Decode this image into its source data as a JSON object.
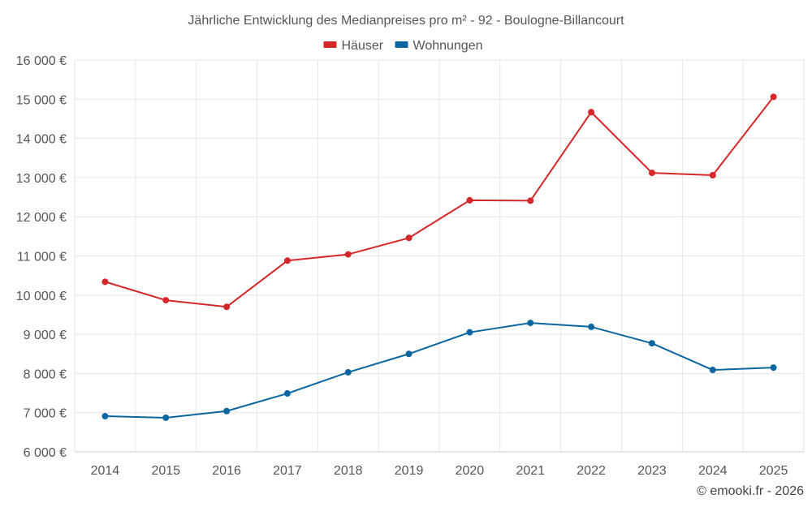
{
  "chart_data": {
    "type": "line",
    "title": "Jährliche Entwicklung des Medianpreises pro m² - 92 - Boulogne-Billancourt",
    "x": [
      "2014",
      "2015",
      "2016",
      "2017",
      "2018",
      "2019",
      "2020",
      "2021",
      "2022",
      "2023",
      "2024",
      "2025"
    ],
    "series": [
      {
        "name": "Häuser",
        "color": "#d62728",
        "values": [
          10340,
          9870,
          9700,
          10880,
          11040,
          11460,
          12420,
          12410,
          14670,
          13120,
          13060,
          15060
        ]
      },
      {
        "name": "Wohnungen",
        "color": "#0a66a0",
        "values": [
          6910,
          6870,
          7040,
          7490,
          8030,
          8500,
          9050,
          9290,
          9190,
          8770,
          8090,
          8150
        ]
      }
    ],
    "ylim": [
      6000,
      16000
    ],
    "yticks": [
      6000,
      7000,
      8000,
      9000,
      10000,
      11000,
      12000,
      13000,
      14000,
      15000,
      16000
    ],
    "ytick_labels": [
      "6 000 €",
      "7 000 €",
      "8 000 €",
      "9 000 €",
      "10 000 €",
      "11 000 €",
      "12 000 €",
      "13 000 €",
      "14 000 €",
      "15 000 €",
      "16 000 €"
    ],
    "xlabel": "",
    "ylabel": "",
    "grid": true,
    "legend_position": "top-center"
  },
  "credit": "© emooki.fr - 2026"
}
